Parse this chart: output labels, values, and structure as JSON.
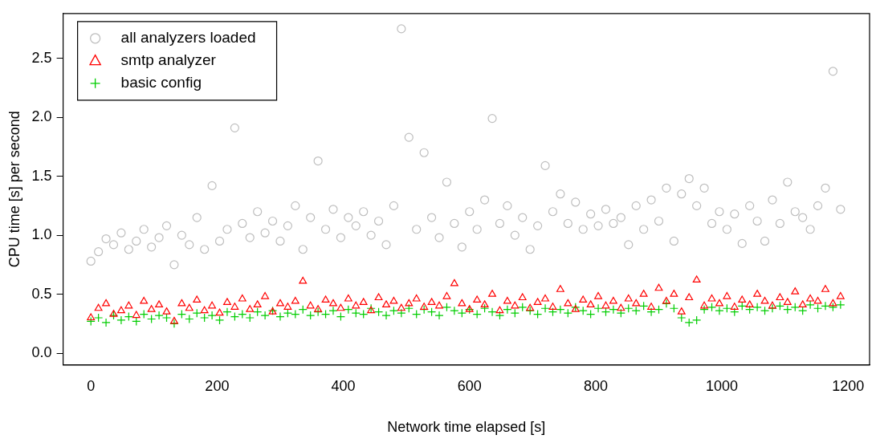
{
  "chart_data": {
    "type": "scatter",
    "xlabel": "Network time elapsed [s]",
    "ylabel": "CPU time [s] per second",
    "x": [
      0,
      12,
      24,
      36,
      48,
      60,
      72,
      84,
      96,
      108,
      120,
      132,
      144,
      156,
      168,
      180,
      192,
      204,
      216,
      228,
      240,
      252,
      264,
      276,
      288,
      300,
      312,
      324,
      336,
      348,
      360,
      372,
      384,
      396,
      408,
      420,
      432,
      444,
      456,
      468,
      480,
      492,
      504,
      516,
      528,
      540,
      552,
      564,
      576,
      588,
      600,
      612,
      624,
      636,
      648,
      660,
      672,
      684,
      696,
      708,
      720,
      732,
      744,
      756,
      768,
      780,
      792,
      804,
      816,
      828,
      840,
      852,
      864,
      876,
      888,
      900,
      912,
      924,
      936,
      948,
      960,
      972,
      984,
      996,
      1008,
      1020,
      1032,
      1044,
      1056,
      1068,
      1080,
      1092,
      1104,
      1116,
      1128,
      1140,
      1152,
      1164,
      1176,
      1188
    ],
    "series": [
      {
        "name": "all analyzers loaded",
        "color": "#bebebe",
        "marker": "circle",
        "values": [
          0.78,
          0.86,
          0.97,
          0.92,
          1.02,
          0.88,
          0.95,
          1.05,
          0.9,
          0.98,
          1.08,
          0.75,
          1.0,
          0.92,
          1.15,
          0.88,
          1.42,
          0.95,
          1.05,
          1.91,
          1.1,
          0.98,
          1.2,
          1.02,
          1.12,
          0.95,
          1.08,
          1.25,
          0.88,
          1.15,
          1.63,
          1.05,
          1.22,
          0.98,
          1.15,
          1.08,
          1.2,
          1.0,
          1.12,
          0.92,
          1.25,
          2.75,
          1.83,
          1.05,
          1.7,
          1.15,
          0.98,
          1.45,
          1.1,
          0.9,
          1.2,
          1.05,
          1.3,
          1.99,
          1.1,
          1.25,
          1.0,
          1.15,
          0.88,
          1.08,
          1.59,
          1.2,
          1.35,
          1.1,
          1.28,
          1.05,
          1.18,
          1.08,
          1.22,
          1.1,
          1.15,
          0.92,
          1.25,
          1.05,
          1.3,
          1.12,
          1.4,
          0.95,
          1.35,
          1.48,
          1.25,
          1.4,
          1.1,
          1.2,
          1.05,
          1.18,
          0.93,
          1.25,
          1.12,
          0.95,
          1.3,
          1.1,
          1.45,
          1.2,
          1.15,
          1.05,
          1.25,
          1.4,
          2.39,
          1.22
        ]
      },
      {
        "name": "smtp analyzer",
        "color": "#ff0000",
        "marker": "triangle",
        "values": [
          0.3,
          0.38,
          0.42,
          0.33,
          0.36,
          0.4,
          0.32,
          0.44,
          0.37,
          0.41,
          0.35,
          0.27,
          0.42,
          0.38,
          0.45,
          0.36,
          0.4,
          0.34,
          0.43,
          0.39,
          0.46,
          0.37,
          0.41,
          0.48,
          0.35,
          0.42,
          0.39,
          0.44,
          0.61,
          0.4,
          0.37,
          0.45,
          0.42,
          0.38,
          0.46,
          0.4,
          0.43,
          0.36,
          0.47,
          0.41,
          0.44,
          0.38,
          0.42,
          0.46,
          0.39,
          0.43,
          0.4,
          0.48,
          0.59,
          0.42,
          0.37,
          0.45,
          0.41,
          0.5,
          0.36,
          0.44,
          0.4,
          0.47,
          0.38,
          0.43,
          0.46,
          0.39,
          0.54,
          0.42,
          0.37,
          0.45,
          0.41,
          0.48,
          0.4,
          0.44,
          0.38,
          0.46,
          0.42,
          0.5,
          0.39,
          0.55,
          0.44,
          0.5,
          0.35,
          0.47,
          0.62,
          0.4,
          0.46,
          0.42,
          0.48,
          0.39,
          0.45,
          0.41,
          0.5,
          0.44,
          0.4,
          0.47,
          0.43,
          0.52,
          0.41,
          0.46,
          0.44,
          0.54,
          0.42,
          0.48
        ]
      },
      {
        "name": "basic config",
        "color": "#00cd00",
        "marker": "cross",
        "values": [
          0.27,
          0.3,
          0.26,
          0.32,
          0.28,
          0.31,
          0.27,
          0.33,
          0.29,
          0.32,
          0.3,
          0.25,
          0.33,
          0.29,
          0.34,
          0.3,
          0.32,
          0.28,
          0.35,
          0.31,
          0.33,
          0.3,
          0.35,
          0.32,
          0.36,
          0.31,
          0.34,
          0.33,
          0.37,
          0.32,
          0.35,
          0.33,
          0.36,
          0.31,
          0.37,
          0.34,
          0.33,
          0.38,
          0.35,
          0.32,
          0.36,
          0.34,
          0.38,
          0.33,
          0.37,
          0.35,
          0.32,
          0.39,
          0.36,
          0.34,
          0.37,
          0.33,
          0.38,
          0.35,
          0.32,
          0.37,
          0.34,
          0.39,
          0.36,
          0.33,
          0.38,
          0.35,
          0.37,
          0.34,
          0.39,
          0.36,
          0.33,
          0.38,
          0.35,
          0.37,
          0.34,
          0.38,
          0.36,
          0.4,
          0.35,
          0.37,
          0.42,
          0.38,
          0.3,
          0.26,
          0.28,
          0.37,
          0.39,
          0.36,
          0.38,
          0.35,
          0.4,
          0.37,
          0.39,
          0.36,
          0.38,
          0.4,
          0.37,
          0.39,
          0.36,
          0.41,
          0.38,
          0.4,
          0.39,
          0.41
        ]
      }
    ],
    "xlim": [
      -44,
      1234
    ],
    "xticks": [
      0,
      200,
      400,
      600,
      800,
      1000,
      1200
    ],
    "ylim": [
      -0.1,
      2.88
    ],
    "yticks": [
      {
        "value": 0,
        "label": "0.0"
      },
      {
        "value": 0.5,
        "label": "0.5"
      },
      {
        "value": 1,
        "label": "1.0"
      },
      {
        "value": 1.5,
        "label": "1.5"
      },
      {
        "value": 2,
        "label": "2.0"
      },
      {
        "value": 2.5,
        "label": "2.5"
      }
    ],
    "grid": false,
    "legend": "top left"
  }
}
